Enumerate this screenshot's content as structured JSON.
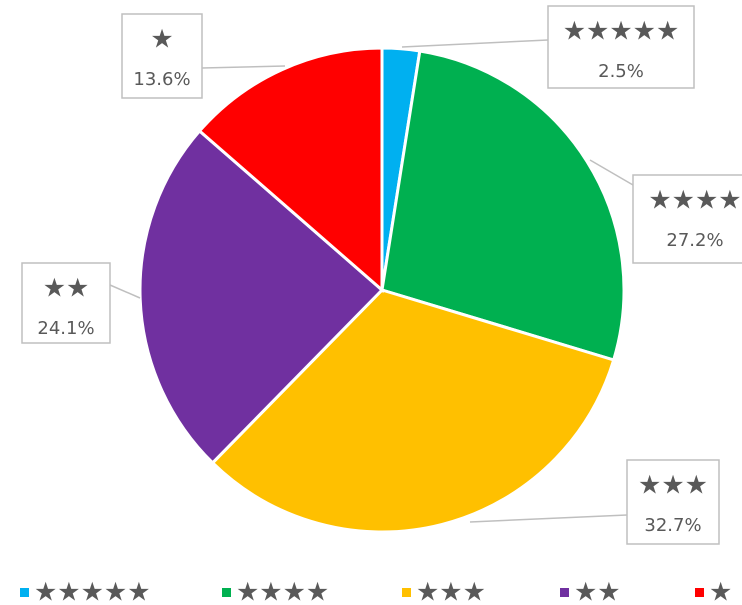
{
  "chart_data": {
    "type": "pie",
    "categories": [
      "★★★★★",
      "★★★★",
      "★★★",
      "★★",
      "★"
    ],
    "values": [
      2.5,
      27.2,
      32.7,
      24.1,
      13.6
    ],
    "value_labels": [
      "2.5%",
      "27.2%",
      "32.7%",
      "24.1%",
      "13.6%"
    ],
    "colors": [
      "#00b0f0",
      "#00b050",
      "#ffc000",
      "#7030a0",
      "#ff0000"
    ],
    "legend": "bottom"
  }
}
